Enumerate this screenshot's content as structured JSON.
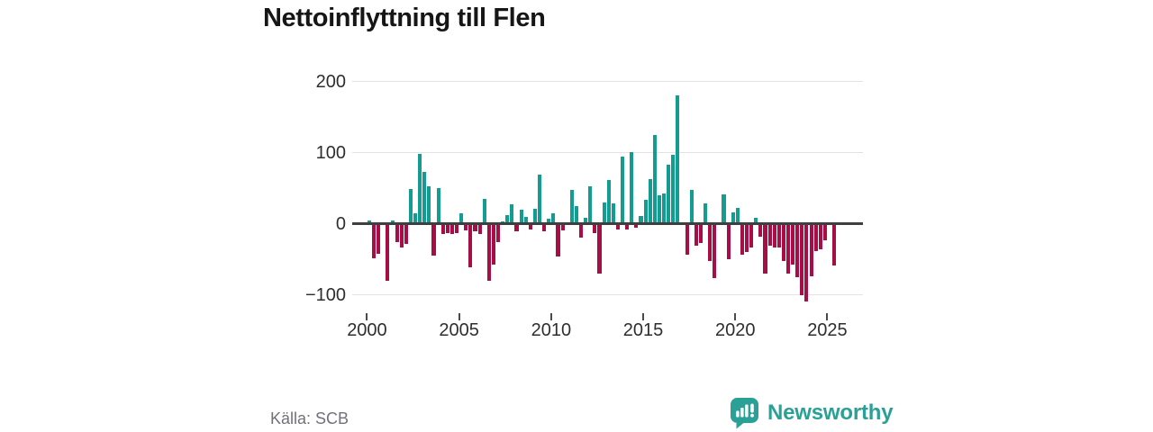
{
  "title": "Nettoinflyttning till Flen",
  "source": "Källa: SCB",
  "branding": {
    "name": "Newsworthy"
  },
  "colors": {
    "positive_bar": "#129c92",
    "negative_bar": "#a60e45",
    "axis_line": "#3f3f3f",
    "gridline": "#e3e3e3",
    "brand_teal": "#2aa096",
    "title_text": "#161616",
    "axis_text": "#2e2e2e",
    "source_text": "#6f7278"
  },
  "y_axis": {
    "tick_labels": [
      "200",
      "100",
      "0",
      "−100"
    ],
    "tick_values": [
      200,
      100,
      0,
      -100
    ]
  },
  "x_axis": {
    "tick_labels": [
      "2000",
      "2005",
      "2010",
      "2015",
      "2020",
      "2025"
    ],
    "tick_years": [
      2000,
      2005,
      2010,
      2015,
      2020,
      2025
    ]
  },
  "chart_data": {
    "type": "bar",
    "title": "Nettoinflyttning till Flen",
    "xlabel": "",
    "ylabel": "",
    "frequency": "quarterly",
    "start_period": "2000Q1",
    "end_period": "2025Q2",
    "grid": "horizontal",
    "legend": "none",
    "ylim": [
      -130,
      215
    ],
    "series_by_year": [
      {
        "year": 2000,
        "values": [
          4,
          -49,
          -42,
          0
        ]
      },
      {
        "year": 2001,
        "values": [
          -81,
          4,
          -26,
          -34
        ]
      },
      {
        "year": 2002,
        "values": [
          -28,
          49,
          14,
          98
        ]
      },
      {
        "year": 2003,
        "values": [
          73,
          53,
          -45,
          50
        ]
      },
      {
        "year": 2004,
        "values": [
          -15,
          -13,
          -15,
          -13
        ]
      },
      {
        "year": 2005,
        "values": [
          15,
          -9,
          -62,
          -11
        ]
      },
      {
        "year": 2006,
        "values": [
          -15,
          35,
          -81,
          -58
        ]
      },
      {
        "year": 2007,
        "values": [
          -26,
          3,
          12,
          27
        ]
      },
      {
        "year": 2008,
        "values": [
          -11,
          20,
          10,
          -8
        ]
      },
      {
        "year": 2009,
        "values": [
          21,
          69,
          -11,
          7
        ]
      },
      {
        "year": 2010,
        "values": [
          14,
          -46,
          -10,
          0
        ]
      },
      {
        "year": 2011,
        "values": [
          48,
          25,
          -19,
          8
        ]
      },
      {
        "year": 2012,
        "values": [
          52,
          -13,
          -70,
          30
        ]
      },
      {
        "year": 2013,
        "values": [
          61,
          29,
          -8,
          94
        ]
      },
      {
        "year": 2014,
        "values": [
          -8,
          101,
          -6,
          11
        ]
      },
      {
        "year": 2015,
        "values": [
          33,
          63,
          125,
          40
        ]
      },
      {
        "year": 2016,
        "values": [
          42,
          83,
          97,
          181
        ]
      },
      {
        "year": 2017,
        "values": [
          0,
          -44,
          48,
          -31
        ]
      },
      {
        "year": 2018,
        "values": [
          -27,
          28,
          -52,
          -77
        ]
      },
      {
        "year": 2019,
        "values": [
          0,
          41,
          -50,
          16
        ]
      },
      {
        "year": 2020,
        "values": [
          22,
          -44,
          -40,
          -33
        ]
      },
      {
        "year": 2021,
        "values": [
          8,
          -18,
          -70,
          -31
        ]
      },
      {
        "year": 2022,
        "values": [
          -33,
          -33,
          -52,
          -70
        ]
      },
      {
        "year": 2023,
        "values": [
          -58,
          -75,
          -100,
          -109
        ]
      },
      {
        "year": 2024,
        "values": [
          -74,
          -38,
          -36,
          -23
        ]
      },
      {
        "year": 2025,
        "values": [
          0,
          -59
        ]
      }
    ]
  }
}
